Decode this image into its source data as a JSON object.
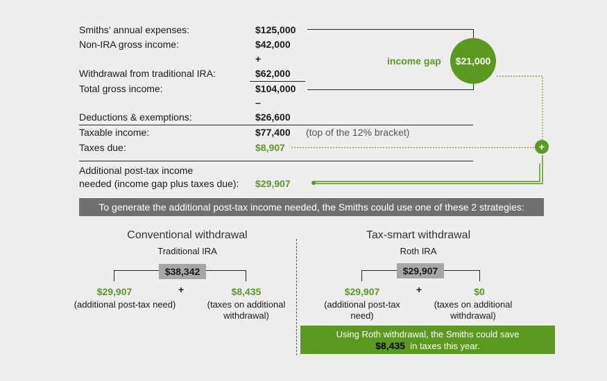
{
  "rows": {
    "expenses_label": "Smiths’ annual expenses:",
    "expenses_value": "$125,000",
    "nonira_label": "Non-IRA gross income:",
    "nonira_value": "$42,000",
    "plus_sign": "+",
    "withdrawal_label": "Withdrawal from traditional IRA:",
    "withdrawal_value": "$62,000",
    "total_label": "Total gross income:",
    "total_value": "$104,000",
    "minus_sign": "–",
    "deductions_label": "Deductions & exemptions:",
    "deductions_value": "$26,600",
    "taxable_label": "Taxable income:",
    "taxable_value": "$77,400",
    "taxable_note": "(top of the 12% bracket)",
    "taxes_label": "Taxes due:",
    "taxes_value": "$8,907",
    "additional_label_line1": "Additional post-tax income",
    "additional_label_line2": "needed (income gap plus taxes due):",
    "additional_value": "$29,907"
  },
  "gap": {
    "label": "income gap",
    "value": "$21,000",
    "plus": "+"
  },
  "banner": "To generate the additional post-tax income needed, the Smiths could use one of these 2 strategies:",
  "conventional": {
    "heading": "Conventional withdrawal",
    "sub": "Traditional IRA",
    "box_value": "$38,342",
    "plus": "+",
    "left_value": "$29,907",
    "left_caption": "(additional post-tax need)",
    "right_value": "$8,435",
    "right_caption_line1": "(taxes on additional",
    "right_caption_line2": "withdrawal)"
  },
  "taxsmart": {
    "heading": "Tax-smart withdrawal",
    "sub": "Roth IRA",
    "box_value": "$29,907",
    "plus": "+",
    "left_value": "$29,907",
    "left_caption_line1": "(additional post-tax",
    "left_caption_line2": "need)",
    "right_value": "$0",
    "right_caption_line1": "(taxes on additional",
    "right_caption_line2": "withdrawal)"
  },
  "savings": {
    "line1": "Using Roth withdrawal, the Smiths could save",
    "amount": "$8,435",
    "line2_rest": "in taxes this year."
  },
  "colors": {
    "accent_green": "#5a9a1e",
    "banner_gray": "#707070",
    "box_gray": "#a7a7a7",
    "background": "#eeeeee"
  }
}
